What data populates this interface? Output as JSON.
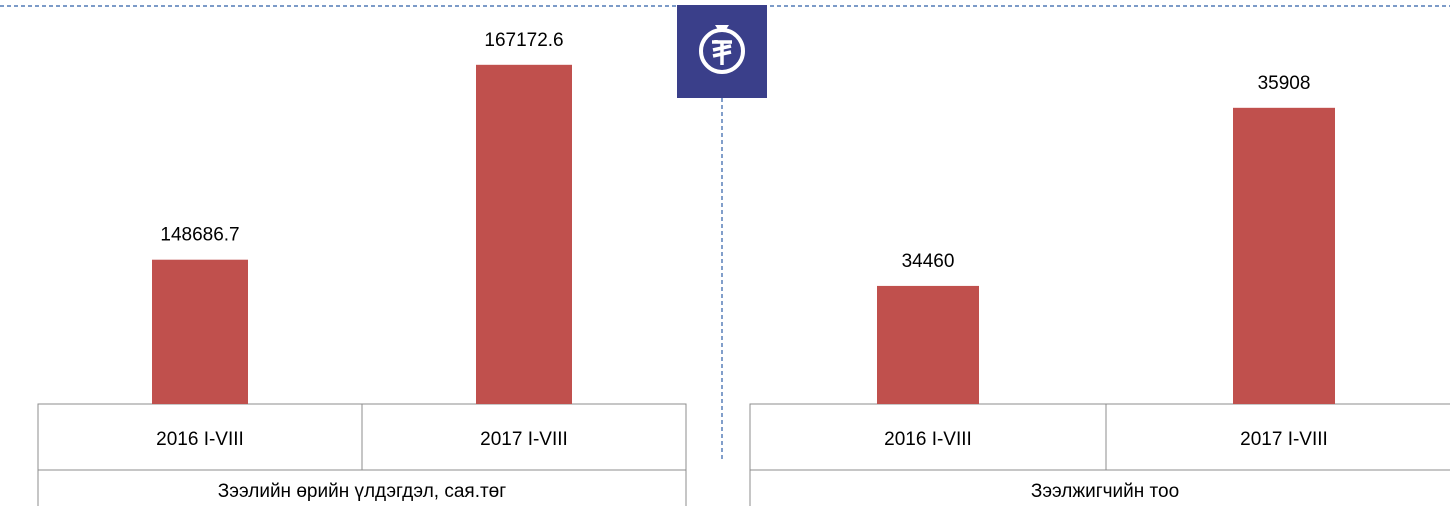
{
  "chart_data": [
    {
      "type": "bar",
      "x_label": "Зээлийн өрийн үлдэгдэл, сая.төг",
      "categories": [
        "2016 I-VIII",
        "2017 I-VIII"
      ],
      "values": [
        148686.7,
        167172.6
      ],
      "color": "#c0504d",
      "ylim": [
        135000,
        170000
      ]
    },
    {
      "type": "bar",
      "x_label": "Зээлжигчийн тоо",
      "categories": [
        "2016 I-VIII",
        "2017 I-VIII"
      ],
      "values": [
        34460,
        35908
      ],
      "color": "#c0504d",
      "ylim": [
        33500,
        36500
      ]
    }
  ]
}
